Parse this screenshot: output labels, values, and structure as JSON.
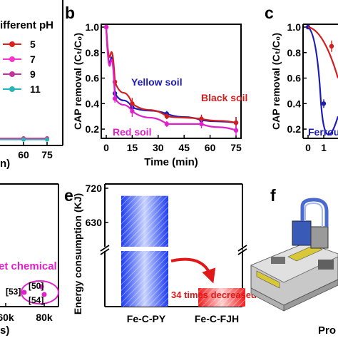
{
  "panel_labels": {
    "b": "b",
    "c": "c",
    "e": "e",
    "f": "f"
  },
  "chart_data": [
    {
      "id": "a",
      "type": "line",
      "legend_title": "ifferent pH",
      "x_ticks": [
        "60",
        "75"
      ],
      "xlabel_fragment": "n)",
      "series": [
        {
          "name": "5",
          "color": "#e0201f",
          "x": [
            60,
            75
          ],
          "y": [
            0.13,
            0.13
          ]
        },
        {
          "name": "7",
          "color": "#ff33cc",
          "x": [
            60,
            75
          ],
          "y": [
            0.13,
            0.13
          ]
        },
        {
          "name": "9",
          "color": "#c4309c",
          "x": [
            60,
            75
          ],
          "y": [
            0.13,
            0.13
          ]
        },
        {
          "name": "11",
          "color": "#25b6b6",
          "x": [
            60,
            75
          ],
          "y": [
            0.13,
            0.13
          ]
        }
      ],
      "legend": "top-right"
    },
    {
      "id": "b",
      "type": "line",
      "xlabel": "Time (min)",
      "ylabel": "CAP removal (Cₜ/C₀)",
      "xlim": [
        0,
        75
      ],
      "ylim": [
        0.15,
        1.0
      ],
      "x_ticks": [
        "0",
        "15",
        "30",
        "45",
        "60",
        "75"
      ],
      "y_ticks": [
        "0.2",
        "0.4",
        "0.6",
        "0.8",
        "1.0"
      ],
      "series": [
        {
          "name": "Yellow soil",
          "color": "#1c1cb5",
          "x": [
            0,
            5,
            15,
            35,
            55,
            75
          ],
          "y": [
            1.0,
            0.48,
            0.37,
            0.32,
            0.27,
            0.25
          ]
        },
        {
          "name": "Black soil",
          "color": "#d11f1f",
          "x": [
            0,
            5,
            15,
            35,
            55,
            75
          ],
          "y": [
            1.0,
            0.57,
            0.4,
            0.3,
            0.28,
            0.25
          ]
        },
        {
          "name": "Red soil",
          "color": "#e020c8",
          "x": [
            0,
            5,
            15,
            35,
            55,
            75
          ],
          "y": [
            1.0,
            0.44,
            0.34,
            0.24,
            0.24,
            0.19
          ]
        }
      ]
    },
    {
      "id": "c",
      "type": "line",
      "ylabel": "CAP removal (Cₜ/C₀)",
      "x_ticks": [
        "0",
        "1"
      ],
      "y_ticks": [
        "0.2",
        "0.4",
        "0.6",
        "0.8",
        "1.0"
      ],
      "annotation": "Ferrou",
      "series": [
        {
          "name": "",
          "color": "#1c1cb5",
          "x": [
            0,
            1
          ],
          "y": [
            1.0,
            0.4
          ]
        },
        {
          "name": "",
          "color": "#d11f1f",
          "x": [
            0,
            1.5
          ],
          "y": [
            1.0,
            0.85
          ]
        }
      ]
    },
    {
      "id": "d",
      "type": "scatter",
      "x_ticks": [
        "60k",
        "80k"
      ],
      "xlabel_fragment": "s)",
      "annotation": "et chemical",
      "point_labels": [
        "[50]",
        "[53]",
        "[54]"
      ]
    },
    {
      "id": "e",
      "type": "bar",
      "ylabel": "Energy consumption (KJ)",
      "categories": [
        "Fe-C-PY",
        "Fe-C-FJH"
      ],
      "values": [
        700,
        20
      ],
      "y_ticks": [
        "630",
        "720"
      ],
      "colors": [
        "#3a5af0",
        "#f03a3a"
      ],
      "annotation": "34 times decreased",
      "broken_axis": true
    }
  ],
  "panel_f": {
    "caption_fragment": "Pro"
  }
}
